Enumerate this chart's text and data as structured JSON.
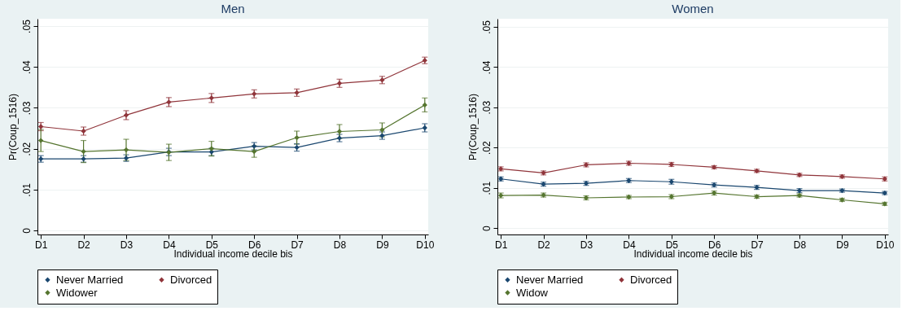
{
  "chart_data": [
    {
      "type": "line",
      "title": "Men",
      "xlabel": "Individual income decile bis",
      "ylabel": "Pr(Coup_1516)",
      "categories": [
        "D1",
        "D2",
        "D3",
        "D4",
        "D5",
        "D6",
        "D7",
        "D8",
        "D9",
        "D10"
      ],
      "ylim": [
        -0.001,
        0.0518
      ],
      "yticks": [
        0,
        {
          "value": 0.01,
          "label": ".01"
        },
        {
          "value": 0.02,
          "label": ".02"
        },
        {
          "value": 0.03,
          "label": ".03"
        },
        {
          "value": 0.04,
          "label": ".04"
        },
        {
          "value": 0.05,
          "label": ".05"
        }
      ],
      "grid": "y",
      "legend": "bottom",
      "marker": "diamond",
      "line_style": "solid",
      "series": [
        {
          "name": "Never Married",
          "color": "#1a476f",
          "values": [
            0.0175,
            0.0175,
            0.0177,
            0.0192,
            0.0192,
            0.0206,
            0.0203,
            0.0226,
            0.0232,
            0.0251
          ],
          "errors": [
            0.0008,
            0.0008,
            0.0008,
            0.0009,
            0.0009,
            0.0009,
            0.0009,
            0.0009,
            0.0009,
            0.001
          ]
        },
        {
          "name": "Divorced",
          "color": "#90353b",
          "values": [
            0.0254,
            0.0243,
            0.0282,
            0.0314,
            0.0324,
            0.0334,
            0.0337,
            0.036,
            0.0368,
            0.0416
          ],
          "errors": [
            0.001,
            0.001,
            0.0011,
            0.0011,
            0.0011,
            0.001,
            0.0009,
            0.001,
            0.0009,
            0.0008
          ]
        },
        {
          "name": "Widower",
          "color": "#55752f",
          "values": [
            0.022,
            0.0193,
            0.0197,
            0.0191,
            0.02,
            0.0193,
            0.0227,
            0.0242,
            0.0246,
            0.0307
          ],
          "errors": [
            0.0027,
            0.0027,
            0.0026,
            0.002,
            0.0018,
            0.0014,
            0.0016,
            0.0017,
            0.0017,
            0.0017
          ]
        }
      ]
    },
    {
      "type": "line",
      "title": "Women",
      "xlabel": "Individual income decile bis",
      "ylabel": "Pr(Coup_1516)",
      "categories": [
        "D1",
        "D2",
        "D3",
        "D4",
        "D5",
        "D6",
        "D7",
        "D8",
        "D9",
        "D10"
      ],
      "ylim": [
        -0.0016,
        0.052
      ],
      "yticks": [
        0,
        {
          "value": 0.01,
          "label": ".01"
        },
        {
          "value": 0.02,
          "label": ".02"
        },
        {
          "value": 0.03,
          "label": ".03"
        },
        {
          "value": 0.04,
          "label": ".04"
        },
        {
          "value": 0.05,
          "label": ".05"
        }
      ],
      "grid": "y",
      "legend": "bottom",
      "marker": "diamond",
      "line_style": "solid",
      "series": [
        {
          "name": "Never Married",
          "color": "#1a476f",
          "values": [
            0.0122,
            0.0109,
            0.0111,
            0.0118,
            0.0115,
            0.0107,
            0.0101,
            0.0093,
            0.0093,
            0.0087
          ],
          "errors": [
            0.0005,
            0.0005,
            0.0005,
            0.0005,
            0.0006,
            0.0005,
            0.0005,
            0.0005,
            0.0004,
            0.0004
          ]
        },
        {
          "name": "Divorced",
          "color": "#90353b",
          "values": [
            0.0147,
            0.0137,
            0.0157,
            0.0161,
            0.0158,
            0.0151,
            0.0142,
            0.0132,
            0.0128,
            0.0122
          ],
          "errors": [
            0.0005,
            0.0005,
            0.0005,
            0.0005,
            0.0005,
            0.0004,
            0.0004,
            0.0004,
            0.0004,
            0.0005
          ]
        },
        {
          "name": "Widow",
          "color": "#55752f",
          "values": [
            0.0081,
            0.0082,
            0.0075,
            0.0077,
            0.0078,
            0.0087,
            0.0078,
            0.0081,
            0.007,
            0.006
          ],
          "errors": [
            0.0006,
            0.0005,
            0.0005,
            0.0004,
            0.0005,
            0.0005,
            0.0004,
            0.0004,
            0.0004,
            0.0004
          ]
        }
      ]
    }
  ]
}
